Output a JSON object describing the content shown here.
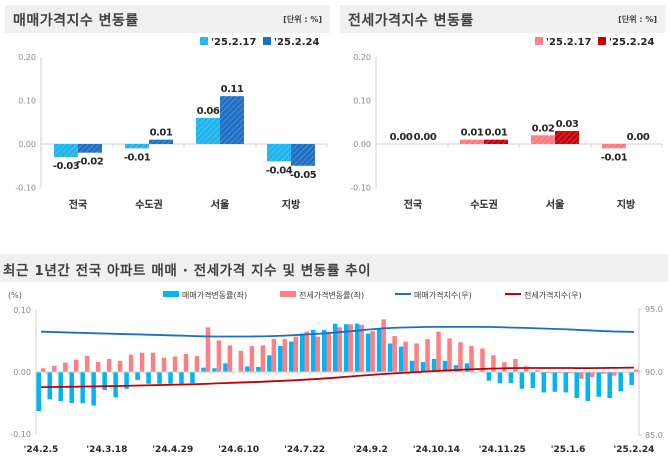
{
  "colors": {
    "sale_prev": "#1fb4ee",
    "sale_curr": "#1f6fc5",
    "jeonse_prev": "#ff7a80",
    "jeonse_curr": "#c8000a",
    "bar_sale_rate": "#00b4f5",
    "bar_jeonse_rate": "#ff7f84",
    "line_sale_index": "#1f6fc0",
    "line_jeonse_index": "#c00000"
  },
  "chart_data": [
    {
      "type": "bar",
      "title": "매매가격지수 변동률",
      "unit": "[단위 : %]",
      "categories": [
        "전국",
        "수도권",
        "서울",
        "지방"
      ],
      "series": [
        {
          "name": "'25.2.17",
          "values": [
            -0.03,
            -0.01,
            0.06,
            -0.04
          ]
        },
        {
          "name": "'25.2.24",
          "values": [
            -0.02,
            0.01,
            0.11,
            -0.05
          ]
        }
      ],
      "value_labels": [
        [
          "-0.03",
          "-0.01",
          "0.06",
          "-0.04"
        ],
        [
          "-0.02",
          "0.01",
          "0.11",
          "-0.05"
        ]
      ],
      "ylim": [
        -0.1,
        0.2
      ],
      "yticks": [
        "0.20",
        "0.10",
        "0.00",
        "-0.10"
      ],
      "legend": "top-right"
    },
    {
      "type": "bar",
      "title": "전세가격지수 변동률",
      "unit": "[단위 : %]",
      "categories": [
        "전국",
        "수도권",
        "서울",
        "지방"
      ],
      "series": [
        {
          "name": "'25.2.17",
          "values": [
            0.0,
            0.01,
            0.02,
            -0.01
          ]
        },
        {
          "name": "'25.2.24",
          "values": [
            0.0,
            0.01,
            0.03,
            0.0
          ]
        }
      ],
      "value_labels": [
        [
          "0.00",
          "0.01",
          "0.02",
          "-0.01"
        ],
        [
          "0.00",
          "0.01",
          "0.03",
          "0.00"
        ]
      ],
      "ylim": [
        -0.1,
        0.2
      ],
      "yticks": [
        "0.20",
        "0.10",
        "0.00",
        "-0.10"
      ],
      "legend": "top-right"
    },
    {
      "type": "bar+line",
      "title": "최근 1년간 전국 아파트 매매 · 전세가격 지수 및 변동률 추이",
      "ylabel_left": "(%)",
      "ylim_left": [
        -0.1,
        0.1
      ],
      "yticks_left": [
        "0.10",
        "0.00",
        "-0.10"
      ],
      "ylim_right": [
        85.0,
        95.0
      ],
      "yticks_right": [
        "95.0",
        "90.0",
        "85.0"
      ],
      "legend": "top",
      "x": [
        "'24.2.5",
        "'24.2.12",
        "'24.2.19",
        "'24.2.26",
        "'24.3.4",
        "'24.3.11",
        "'24.3.18",
        "'24.3.25",
        "'24.4.1",
        "'24.4.8",
        "'24.4.15",
        "'24.4.22",
        "'24.4.29",
        "'24.5.6",
        "'24.5.13",
        "'24.5.20",
        "'24.5.27",
        "'24.6.3",
        "'24.6.10",
        "'24.6.17",
        "'24.6.24",
        "'24.7.1",
        "'24.7.8",
        "'24.7.15",
        "'24.7.22",
        "'24.7.29",
        "'24.8.5",
        "'24.8.12",
        "'24.8.19",
        "'24.8.26",
        "'24.9.2",
        "'24.9.9",
        "'24.9.16",
        "'24.9.23",
        "'24.9.30",
        "'24.10.7",
        "'24.10.14",
        "'24.10.21",
        "'24.10.28",
        "'24.11.4",
        "'24.11.11",
        "'24.11.18",
        "'24.11.25",
        "'24.12.2",
        "'24.12.9",
        "'24.12.16",
        "'24.12.23",
        "'24.12.30",
        "'25.1.6",
        "'25.1.13",
        "'25.1.20",
        "'25.2.3",
        "'25.2.10",
        "'25.2.17",
        "'25.2.24"
      ],
      "tick_labels": [
        "'24.2.5",
        "'24.3.18",
        "'24.4.29",
        "'24.6.10",
        "'24.7.22",
        "'24.9.2",
        "'24.10.14",
        "'24.11.25",
        "'25.1.6",
        "'25.2.24"
      ],
      "series": [
        {
          "name": "매매가격변동률(좌)",
          "kind": "bar",
          "axis": "left",
          "values": [
            -0.063,
            -0.044,
            -0.047,
            -0.05,
            -0.05,
            -0.054,
            -0.029,
            -0.041,
            -0.027,
            -0.013,
            -0.019,
            -0.019,
            -0.019,
            -0.019,
            -0.018,
            0.007,
            0.006,
            0.014,
            0.0,
            0.009,
            0.008,
            0.027,
            0.042,
            0.049,
            0.062,
            0.068,
            0.068,
            0.078,
            0.077,
            0.078,
            0.062,
            0.07,
            0.046,
            0.041,
            0.018,
            0.016,
            0.021,
            0.018,
            0.011,
            0.014,
            0.001,
            -0.014,
            -0.018,
            -0.018,
            -0.027,
            -0.026,
            -0.033,
            -0.032,
            -0.033,
            -0.042,
            -0.047,
            -0.04,
            -0.042,
            -0.031,
            -0.021
          ]
        },
        {
          "name": "전세가격변동률(좌)",
          "kind": "bar",
          "axis": "left",
          "values": [
            0.006,
            0.01,
            0.015,
            0.02,
            0.026,
            0.016,
            0.021,
            0.018,
            0.028,
            0.031,
            0.031,
            0.023,
            0.025,
            0.029,
            0.026,
            0.072,
            0.051,
            0.043,
            0.034,
            0.042,
            0.043,
            0.053,
            0.053,
            0.057,
            0.065,
            0.057,
            0.062,
            0.072,
            0.077,
            0.076,
            0.066,
            0.085,
            0.058,
            0.049,
            0.046,
            0.053,
            0.065,
            0.054,
            0.048,
            0.042,
            0.038,
            0.027,
            0.016,
            0.021,
            0.009,
            0.003,
            -0.002,
            -0.002,
            -0.002,
            -0.011,
            -0.008,
            -0.003,
            -0.006,
            -0.001,
            0.004
          ]
        },
        {
          "name": "매매가격지수(우)",
          "kind": "line",
          "axis": "right",
          "values": [
            93.2,
            93.18,
            93.15,
            93.12,
            93.1,
            93.07,
            93.05,
            93.02,
            93.0,
            92.98,
            92.95,
            92.93,
            92.9,
            92.88,
            92.85,
            92.83,
            92.82,
            92.82,
            92.82,
            92.82,
            92.83,
            92.85,
            92.88,
            92.92,
            92.97,
            93.02,
            93.08,
            93.15,
            93.22,
            93.3,
            93.38,
            93.45,
            93.5,
            93.53,
            93.55,
            93.57,
            93.58,
            93.58,
            93.58,
            93.58,
            93.58,
            93.57,
            93.55,
            93.52,
            93.5,
            93.47,
            93.44,
            93.41,
            93.38,
            93.34,
            93.3,
            93.26,
            93.22,
            93.2,
            93.18
          ]
        },
        {
          "name": "전세가격지수(우)",
          "kind": "line",
          "axis": "right",
          "values": [
            88.8,
            88.81,
            88.82,
            88.83,
            88.85,
            88.86,
            88.88,
            88.89,
            88.91,
            88.93,
            88.95,
            88.97,
            88.99,
            89.01,
            89.03,
            89.06,
            89.1,
            89.13,
            89.16,
            89.19,
            89.22,
            89.26,
            89.3,
            89.34,
            89.39,
            89.44,
            89.5,
            89.56,
            89.63,
            89.7,
            89.76,
            89.83,
            89.88,
            89.93,
            89.98,
            90.03,
            90.08,
            90.13,
            90.17,
            90.21,
            90.24,
            90.27,
            90.29,
            90.31,
            90.32,
            90.32,
            90.32,
            90.32,
            90.32,
            90.31,
            90.31,
            90.32,
            90.33,
            90.34,
            90.35
          ]
        }
      ]
    }
  ]
}
